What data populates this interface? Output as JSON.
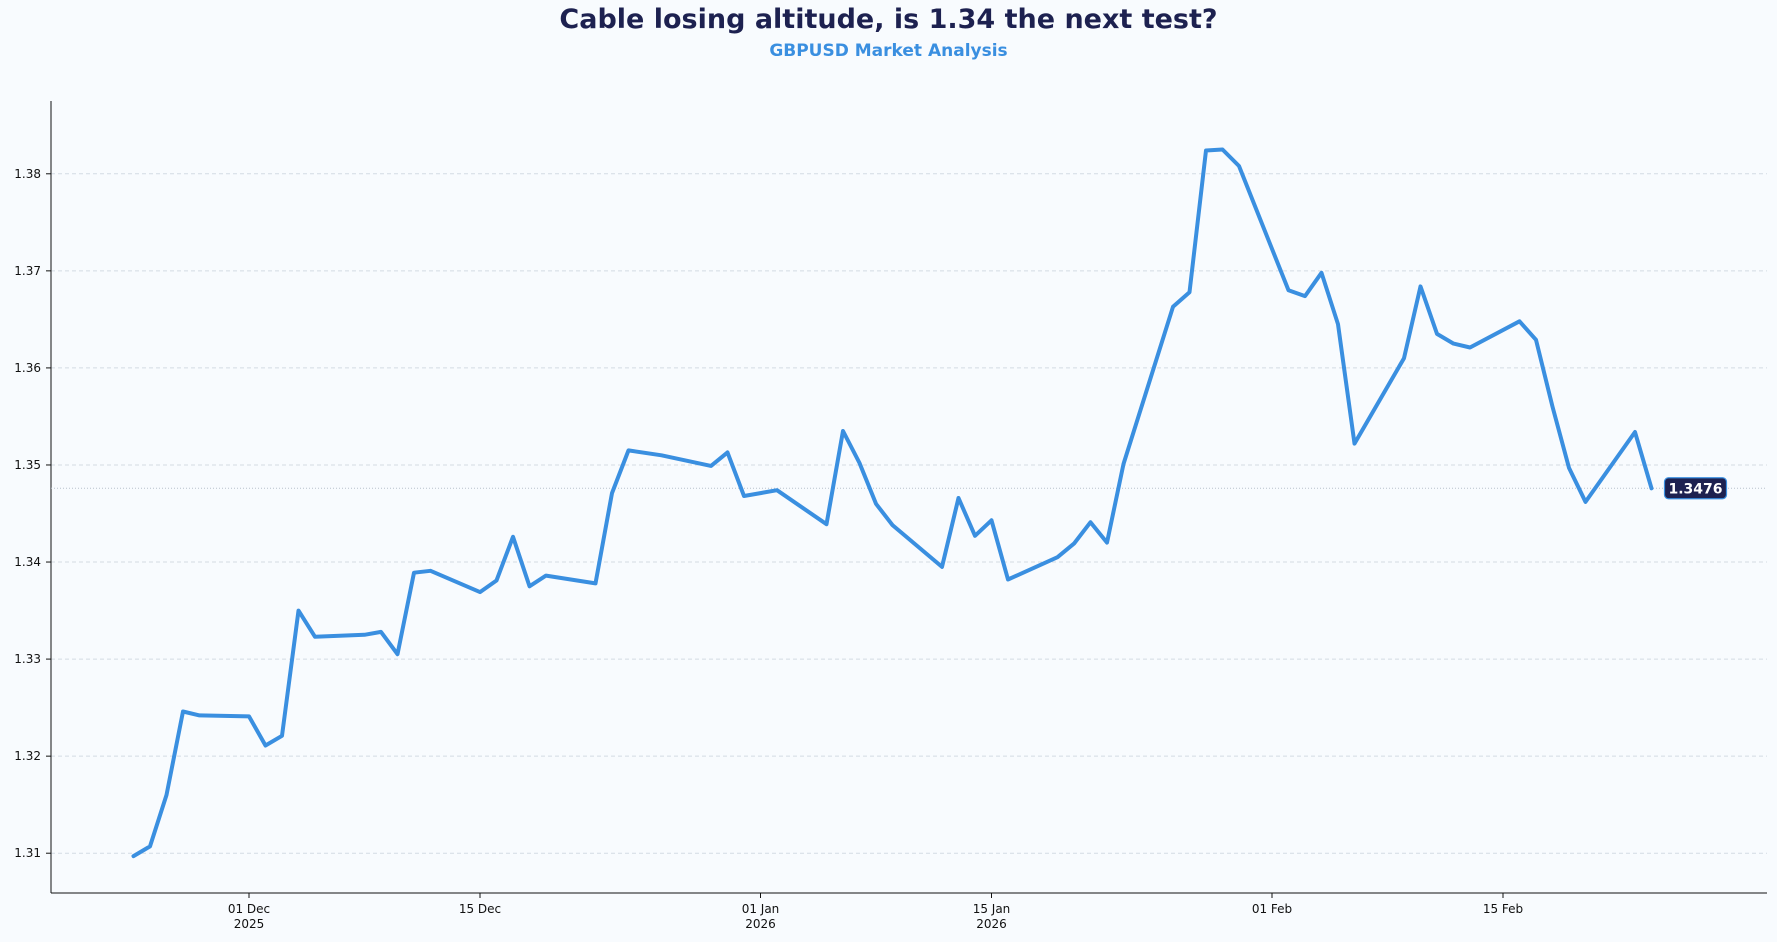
{
  "chart_data": {
    "type": "line",
    "title": "Cable losing altitude, is 1.34 the next test?",
    "subtitle": "GBPUSD Market Analysis",
    "xlabel": "",
    "ylabel": "",
    "x_range": [
      "2025-11-19",
      "2026-03-03"
    ],
    "ylim": [
      1.3059,
      1.3875
    ],
    "y_ticks": [
      1.31,
      1.32,
      1.33,
      1.34,
      1.35,
      1.36,
      1.37,
      1.38
    ],
    "x_ticks": [
      {
        "date": "2025-12-01",
        "label": "01 Dec",
        "label2": "2025"
      },
      {
        "date": "2025-12-15",
        "label": "15 Dec",
        "label2": ""
      },
      {
        "date": "2026-01-01",
        "label": "01 Jan",
        "label2": "2026"
      },
      {
        "date": "2026-01-15",
        "label": "15 Jan",
        "label2": "2026"
      },
      {
        "date": "2026-02-01",
        "label": "01 Feb",
        "label2": ""
      },
      {
        "date": "2026-02-15",
        "label": "15 Feb",
        "label2": ""
      }
    ],
    "grid": "horizontal dashed",
    "last_value_label": "1.3476",
    "last_value": 1.3476,
    "series": [
      {
        "color": "#3a8fe0",
        "points": [
          [
            "2025-11-24",
            1.3097
          ],
          [
            "2025-11-25",
            1.3107
          ],
          [
            "2025-11-26",
            1.316
          ],
          [
            "2025-11-27",
            1.3246
          ],
          [
            "2025-11-28",
            1.3242
          ],
          [
            "2025-12-01",
            1.3241
          ],
          [
            "2025-12-02",
            1.3211
          ],
          [
            "2025-12-03",
            1.3221
          ],
          [
            "2025-12-04",
            1.335
          ],
          [
            "2025-12-05",
            1.3323
          ],
          [
            "2025-12-08",
            1.3325
          ],
          [
            "2025-12-09",
            1.3328
          ],
          [
            "2025-12-10",
            1.3305
          ],
          [
            "2025-12-11",
            1.3389
          ],
          [
            "2025-12-12",
            1.3391
          ],
          [
            "2025-12-15",
            1.3369
          ],
          [
            "2025-12-16",
            1.3381
          ],
          [
            "2025-12-17",
            1.3426
          ],
          [
            "2025-12-18",
            1.3375
          ],
          [
            "2025-12-19",
            1.3386
          ],
          [
            "2025-12-22",
            1.3378
          ],
          [
            "2025-12-23",
            1.3471
          ],
          [
            "2025-12-24",
            1.3515
          ],
          [
            "2025-12-26",
            1.351
          ],
          [
            "2025-12-29",
            1.3499
          ],
          [
            "2025-12-30",
            1.3513
          ],
          [
            "2025-12-31",
            1.3468
          ],
          [
            "2026-01-02",
            1.3474
          ],
          [
            "2026-01-05",
            1.3439
          ],
          [
            "2026-01-06",
            1.3535
          ],
          [
            "2026-01-07",
            1.3502
          ],
          [
            "2026-01-08",
            1.346
          ],
          [
            "2026-01-09",
            1.3438
          ],
          [
            "2026-01-12",
            1.3395
          ],
          [
            "2026-01-13",
            1.3466
          ],
          [
            "2026-01-14",
            1.3427
          ],
          [
            "2026-01-15",
            1.3443
          ],
          [
            "2026-01-16",
            1.3382
          ],
          [
            "2026-01-19",
            1.3405
          ],
          [
            "2026-01-20",
            1.3419
          ],
          [
            "2026-01-21",
            1.3441
          ],
          [
            "2026-01-22",
            1.342
          ],
          [
            "2026-01-23",
            1.3501
          ],
          [
            "2026-01-26",
            1.3663
          ],
          [
            "2026-01-27",
            1.3678
          ],
          [
            "2026-01-28",
            1.3824
          ],
          [
            "2026-01-29",
            1.3825
          ],
          [
            "2026-01-30",
            1.3808
          ],
          [
            "2026-02-02",
            1.368
          ],
          [
            "2026-02-03",
            1.3674
          ],
          [
            "2026-02-04",
            1.3698
          ],
          [
            "2026-02-05",
            1.3645
          ],
          [
            "2026-02-06",
            1.3522
          ],
          [
            "2026-02-09",
            1.361
          ],
          [
            "2026-02-10",
            1.3684
          ],
          [
            "2026-02-11",
            1.3635
          ],
          [
            "2026-02-12",
            1.3625
          ],
          [
            "2026-02-13",
            1.3621
          ],
          [
            "2026-02-16",
            1.3648
          ],
          [
            "2026-02-17",
            1.3629
          ],
          [
            "2026-02-18",
            1.356
          ],
          [
            "2026-02-19",
            1.3497
          ],
          [
            "2026-02-20",
            1.3462
          ],
          [
            "2026-02-23",
            1.3534
          ],
          [
            "2026-02-24",
            1.3476
          ]
        ]
      }
    ]
  },
  "colors": {
    "background": "#f8fbfe",
    "title": "#1d2150",
    "subtitle": "#3a8fe0",
    "line": "#3a8fe0",
    "grid": "#d3dbe3",
    "badge_bg": "#1d2150",
    "badge_border": "#3a8fe0"
  }
}
